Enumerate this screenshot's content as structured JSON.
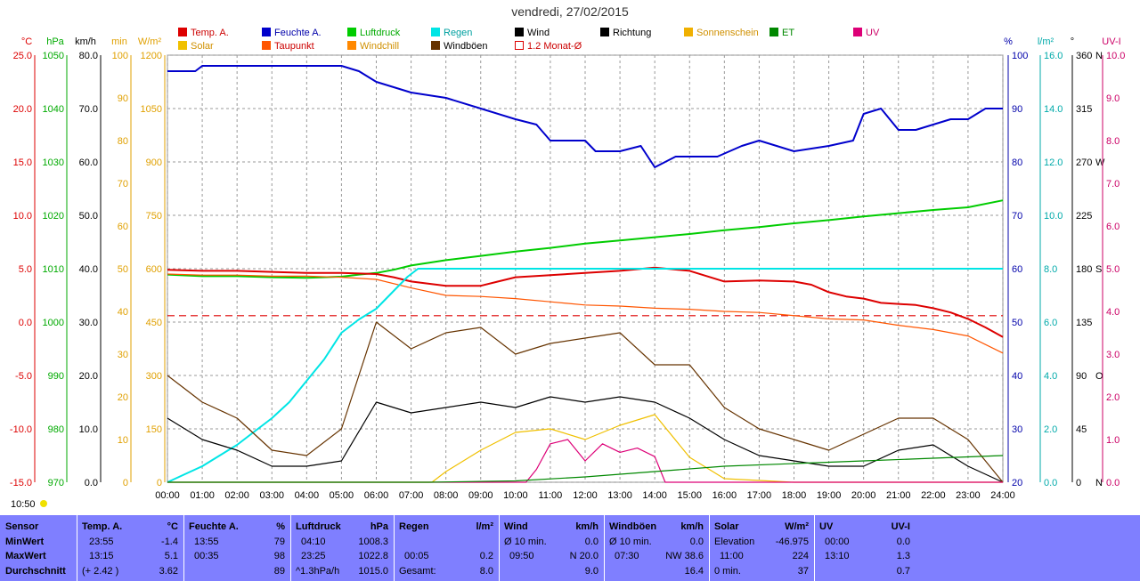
{
  "title": "vendredi, 27/02/2015",
  "time_marker": "10:50",
  "legend": [
    {
      "label": "Temp. A.",
      "color": "#dd0000",
      "hollow": false
    },
    {
      "label": "Solar",
      "color": "#f0c000",
      "hollow": false
    },
    {
      "label": "Feuchte A.",
      "color": "#0000cc",
      "hollow": false
    },
    {
      "label": "Taupunkt",
      "color": "#ff5500",
      "hollow": false
    },
    {
      "label": "Luftdruck",
      "color": "#00cc00",
      "hollow": false
    },
    {
      "label": "Windchill",
      "color": "#ff8800",
      "hollow": false
    },
    {
      "label": "Regen",
      "color": "#00e5e5",
      "hollow": false
    },
    {
      "label": "Windböen",
      "color": "#663300",
      "hollow": false
    },
    {
      "label": "Wind",
      "color": "#000000",
      "hollow": false
    },
    {
      "label": "1.2 Monat-Ø",
      "color": "#dd0000",
      "hollow": true
    },
    {
      "label": "Richtung",
      "color": "#000000",
      "hollow": false
    },
    {
      "label": "Sonnenschein",
      "color": "#f0b000",
      "hollow": false
    },
    {
      "label": "ET",
      "color": "#008800",
      "hollow": false
    },
    {
      "label": "UV",
      "color": "#dd0077",
      "hollow": false
    }
  ],
  "chart_data": {
    "type": "line",
    "x_ticks": [
      "00:00",
      "01:00",
      "02:00",
      "03:00",
      "04:00",
      "05:00",
      "06:00",
      "07:00",
      "08:00",
      "09:00",
      "10:00",
      "11:00",
      "12:00",
      "13:00",
      "14:00",
      "15:00",
      "16:00",
      "17:00",
      "18:00",
      "19:00",
      "20:00",
      "21:00",
      "22:00",
      "23:00",
      "24:00"
    ],
    "left_axes": [
      {
        "unit": "°C",
        "color": "#dd0000",
        "ticks": [
          "25.0",
          "20.0",
          "15.0",
          "10.0",
          "5.0",
          "0.0",
          "-5.0",
          "-10.0",
          "-15.0"
        ]
      },
      {
        "unit": "hPa",
        "color": "#00aa00",
        "ticks": [
          "1050",
          "1040",
          "1030",
          "1020",
          "1010",
          "1000",
          "990",
          "980",
          "970"
        ]
      },
      {
        "unit": "km/h",
        "color": "#000000",
        "ticks": [
          "80.0",
          "70.0",
          "60.0",
          "50.0",
          "40.0",
          "30.0",
          "20.0",
          "10.0",
          "0.0"
        ]
      },
      {
        "unit": "min",
        "color": "#e0a000",
        "ticks": [
          "100",
          "90",
          "80",
          "70",
          "60",
          "50",
          "40",
          "30",
          "20",
          "10",
          "0"
        ]
      },
      {
        "unit": "W/m²",
        "color": "#e0a000",
        "ticks": [
          "1200",
          "1050",
          "900",
          "750",
          "600",
          "450",
          "300",
          "150",
          "0"
        ]
      }
    ],
    "right_axes": [
      {
        "unit": "%",
        "color": "#0000aa",
        "ticks": [
          "100",
          "90",
          "80",
          "70",
          "60",
          "50",
          "40",
          "30",
          "20"
        ]
      },
      {
        "unit": "l/m²",
        "color": "#00aaaa",
        "ticks": [
          "16.0",
          "14.0",
          "12.0",
          "10.0",
          "8.0",
          "6.0",
          "4.0",
          "2.0",
          "0.0"
        ]
      },
      {
        "unit": "°",
        "color": "#000000",
        "ticks": [
          "360",
          "315",
          "270",
          "225",
          "180",
          "135",
          "90",
          "45",
          "0"
        ],
        "compass": [
          "N",
          "",
          "W",
          "",
          "S",
          "",
          "O",
          "",
          "N"
        ]
      },
      {
        "unit": "UV-I",
        "color": "#cc0066",
        "ticks": [
          "10.0",
          "9.0",
          "8.0",
          "7.0",
          "6.0",
          "5.0",
          "4.0",
          "3.0",
          "2.0",
          "1.0",
          "0.0"
        ]
      }
    ],
    "reference_lines": [
      {
        "name": "1.2 Monat-Ø",
        "value_c": 0.6,
        "style": "dashed"
      }
    ],
    "series": [
      {
        "name": "Feuchte A.",
        "axis": "%",
        "color": "#0000cc",
        "x": [
          0,
          0.8,
          1,
          5,
          5.5,
          6,
          7,
          8,
          9,
          10,
          10.6,
          11,
          12,
          12.3,
          13,
          13.6,
          14,
          14.6,
          15,
          15.8,
          16.5,
          17,
          17.5,
          18,
          19,
          19.7,
          20,
          20.5,
          21,
          21.5,
          22,
          22.5,
          23,
          23.5,
          24
        ],
        "y": [
          97,
          97,
          98,
          98,
          97,
          95,
          93,
          92,
          90,
          88,
          87,
          84,
          84,
          82,
          82,
          83,
          79,
          81,
          81,
          81,
          83,
          84,
          83,
          82,
          83,
          84,
          89,
          90,
          86,
          86,
          87,
          88,
          88,
          90,
          90
        ]
      },
      {
        "name": "Luftdruck",
        "axis": "hPa",
        "color": "#00cc00",
        "x": [
          0,
          1,
          2,
          3,
          4,
          5,
          5.5,
          6,
          6.5,
          7,
          8,
          9,
          10,
          11,
          12,
          13,
          14,
          15,
          16,
          17,
          18,
          19,
          20,
          21,
          22,
          23,
          24
        ],
        "y": [
          1008.9,
          1008.6,
          1008.6,
          1008.4,
          1008.3,
          1008.5,
          1008.9,
          1009.2,
          1009.8,
          1010.6,
          1011.6,
          1012.4,
          1013.2,
          1013.9,
          1014.7,
          1015.3,
          1015.9,
          1016.5,
          1017.2,
          1017.8,
          1018.5,
          1019.1,
          1019.8,
          1020.4,
          1021,
          1021.5,
          1022.8
        ]
      },
      {
        "name": "Temp. A.",
        "axis": "°C",
        "color": "#dd0000",
        "x": [
          0,
          1,
          2,
          3,
          4,
          5,
          6,
          6.5,
          7,
          8,
          9,
          9.5,
          10,
          11,
          12,
          13,
          14,
          15,
          16,
          17,
          18,
          18.5,
          19,
          19.5,
          20,
          20.5,
          21,
          21.5,
          22,
          22.5,
          23,
          23.5,
          24
        ],
        "y": [
          4.9,
          4.8,
          4.8,
          4.7,
          4.6,
          4.6,
          4.5,
          4.2,
          3.8,
          3.4,
          3.4,
          3.8,
          4.2,
          4.4,
          4.6,
          4.8,
          5.1,
          4.8,
          3.8,
          3.9,
          3.8,
          3.5,
          2.8,
          2.4,
          2.2,
          1.8,
          1.7,
          1.6,
          1.3,
          0.9,
          0.3,
          -0.5,
          -1.4
        ]
      },
      {
        "name": "Taupunkt",
        "axis": "°C",
        "color": "#ff5500",
        "x": [
          0,
          1,
          2,
          3,
          4,
          5,
          6,
          7,
          8,
          9,
          10,
          11,
          12,
          13,
          14,
          15,
          16,
          17,
          18,
          19,
          20,
          21,
          22,
          23,
          24
        ],
        "y": [
          4.5,
          4.4,
          4.4,
          4.3,
          4.3,
          4.2,
          4.0,
          3.2,
          2.5,
          2.4,
          2.2,
          1.9,
          1.6,
          1.5,
          1.3,
          1.2,
          1.0,
          0.9,
          0.6,
          0.3,
          0.2,
          -0.3,
          -0.7,
          -1.3,
          -2.9
        ]
      },
      {
        "name": "Regen",
        "axis": "l/m²",
        "color": "#00e5e5",
        "x": [
          0,
          0.5,
          1,
          1.5,
          2,
          2.5,
          3,
          3.5,
          4,
          4.5,
          5,
          5.5,
          6,
          6.3,
          6.6,
          6.9,
          7.2,
          7.5,
          24
        ],
        "y": [
          0,
          0.3,
          0.6,
          1.0,
          1.4,
          1.9,
          2.4,
          3.0,
          3.8,
          4.6,
          5.6,
          6.1,
          6.5,
          6.9,
          7.3,
          7.7,
          8.0,
          8.0,
          8.0
        ]
      },
      {
        "name": "Wind",
        "axis": "km/h",
        "color": "#000000",
        "x": [
          0,
          1,
          2,
          3,
          4,
          5,
          6,
          7,
          8,
          9,
          10,
          11,
          12,
          13,
          14,
          15,
          16,
          17,
          18,
          19,
          20,
          21,
          22,
          23,
          24
        ],
        "y": [
          12,
          8,
          6,
          3,
          3,
          4,
          15,
          13,
          14,
          15,
          14,
          16,
          15,
          16,
          15,
          12,
          8,
          5,
          4,
          3,
          3,
          6,
          7,
          3,
          0
        ]
      },
      {
        "name": "Windböen",
        "axis": "km/h",
        "color": "#663300",
        "x": [
          0,
          1,
          2,
          3,
          4,
          5,
          6,
          7,
          8,
          9,
          10,
          11,
          12,
          13,
          14,
          15,
          16,
          17,
          18,
          19,
          20,
          21,
          22,
          23,
          24
        ],
        "y": [
          20,
          15,
          12,
          6,
          5,
          10,
          30,
          25,
          28,
          29,
          24,
          26,
          27,
          28,
          22,
          22,
          14,
          10,
          8,
          6,
          9,
          12,
          12,
          8,
          0
        ]
      },
      {
        "name": "Solar",
        "axis": "W/m²",
        "color": "#f0c000",
        "x": [
          0,
          7.6,
          8,
          9,
          10,
          11,
          12,
          13,
          14,
          15,
          16,
          17,
          18,
          24
        ],
        "y": [
          0,
          0,
          30,
          90,
          140,
          150,
          120,
          160,
          190,
          70,
          10,
          5,
          0,
          0
        ]
      },
      {
        "name": "UV",
        "axis": "UV-I",
        "color": "#dd0077",
        "x": [
          0,
          10.3,
          10.6,
          11,
          11.5,
          12,
          12.5,
          13,
          13.5,
          14,
          14.3,
          24
        ],
        "y": [
          0,
          0,
          0.3,
          0.9,
          1.0,
          0.5,
          0.9,
          0.7,
          0.8,
          0.6,
          0,
          0
        ]
      },
      {
        "name": "ET",
        "axis": "l/m²",
        "color": "#008800",
        "x": [
          0,
          7.5,
          10,
          12,
          14,
          16,
          18,
          20,
          22,
          24
        ],
        "y": [
          0,
          0,
          0.05,
          0.2,
          0.4,
          0.6,
          0.7,
          0.8,
          0.9,
          1.0
        ]
      }
    ]
  },
  "stats": {
    "headers": {
      "sensor": "Sensor",
      "temp": "Temp. A.",
      "temp_u": "°C",
      "hum": "Feuchte A.",
      "hum_u": "%",
      "press": "Luftdruck",
      "press_u": "hPa",
      "rain": "Regen",
      "rain_u": "l/m²",
      "wind": "Wind",
      "wind_u": "km/h",
      "gust": "Windböen",
      "gust_u": "km/h",
      "solar": "Solar",
      "solar_u": "W/m²",
      "uv": "UV",
      "uv_u": "UV-I"
    },
    "rows": [
      {
        "label": "MinWert",
        "temp_t": "23:55",
        "temp_v": "-1.4",
        "hum_t": "13:55",
        "hum_v": "79",
        "press_t": "04:10",
        "press_v": "1008.3",
        "rain_t": "",
        "rain_v": "",
        "wind_t": "Ø 10 min.",
        "wind_v": "0.0",
        "gust_t": "Ø 10 min.",
        "gust_v": "0.0",
        "solar_t": "Elevation",
        "solar_v": "-46.975",
        "uv_t": "00:00",
        "uv_v": "0.0"
      },
      {
        "label": "MaxWert",
        "temp_t": "13:15",
        "temp_v": "5.1",
        "hum_t": "00:35",
        "hum_v": "98",
        "press_t": "23:25",
        "press_v": "1022.8",
        "rain_t": "00:05",
        "rain_v": "0.2",
        "wind_t": "09:50",
        "wind_v": "N 20.0",
        "gust_t": "07:30",
        "gust_v": "NW 38.6",
        "solar_t": "11:00",
        "solar_v": "224",
        "uv_t": "13:10",
        "uv_v": "1.3"
      },
      {
        "label": "Durchschnitt",
        "temp_t": "(+ 2.42 )",
        "temp_v": "3.62",
        "hum_t": "",
        "hum_v": "89",
        "press_t": "^1.3hPa/h",
        "press_v": "1015.0",
        "rain_t": "Gesamt:",
        "rain_v": "8.0",
        "wind_t": "",
        "wind_v": "9.0",
        "gust_t": "",
        "gust_v": "16.4",
        "solar_t": "0 min.",
        "solar_v": "37",
        "uv_t": "",
        "uv_v": "0.7"
      }
    ]
  }
}
